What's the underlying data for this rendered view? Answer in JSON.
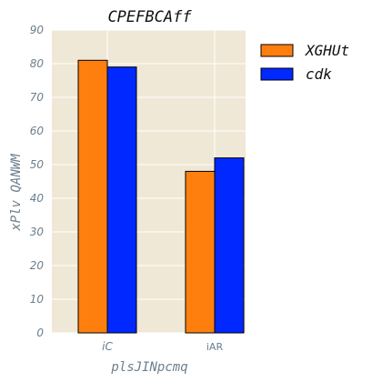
{
  "chart_data": {
    "type": "bar",
    "title": "CPEFBCAff",
    "xlabel": "plsJINpcmq",
    "ylabel": "xPlv  QANWM",
    "categories": [
      "iC",
      "iAR"
    ],
    "series": [
      {
        "name": "XGHUt",
        "values": [
          81,
          48
        ],
        "color": "#ff7f0e"
      },
      {
        "name": "cdk",
        "values": [
          79,
          52
        ],
        "color": "#0028ff"
      }
    ],
    "ylim": [
      0,
      90
    ],
    "yticks": [
      0,
      10,
      20,
      30,
      40,
      50,
      60,
      70,
      80,
      90
    ],
    "grid": true,
    "legend_position": "outside-top-right",
    "plot_background": "#efe8d6",
    "grid_color": "#ffffff",
    "bar_edge_color": "#000000"
  }
}
